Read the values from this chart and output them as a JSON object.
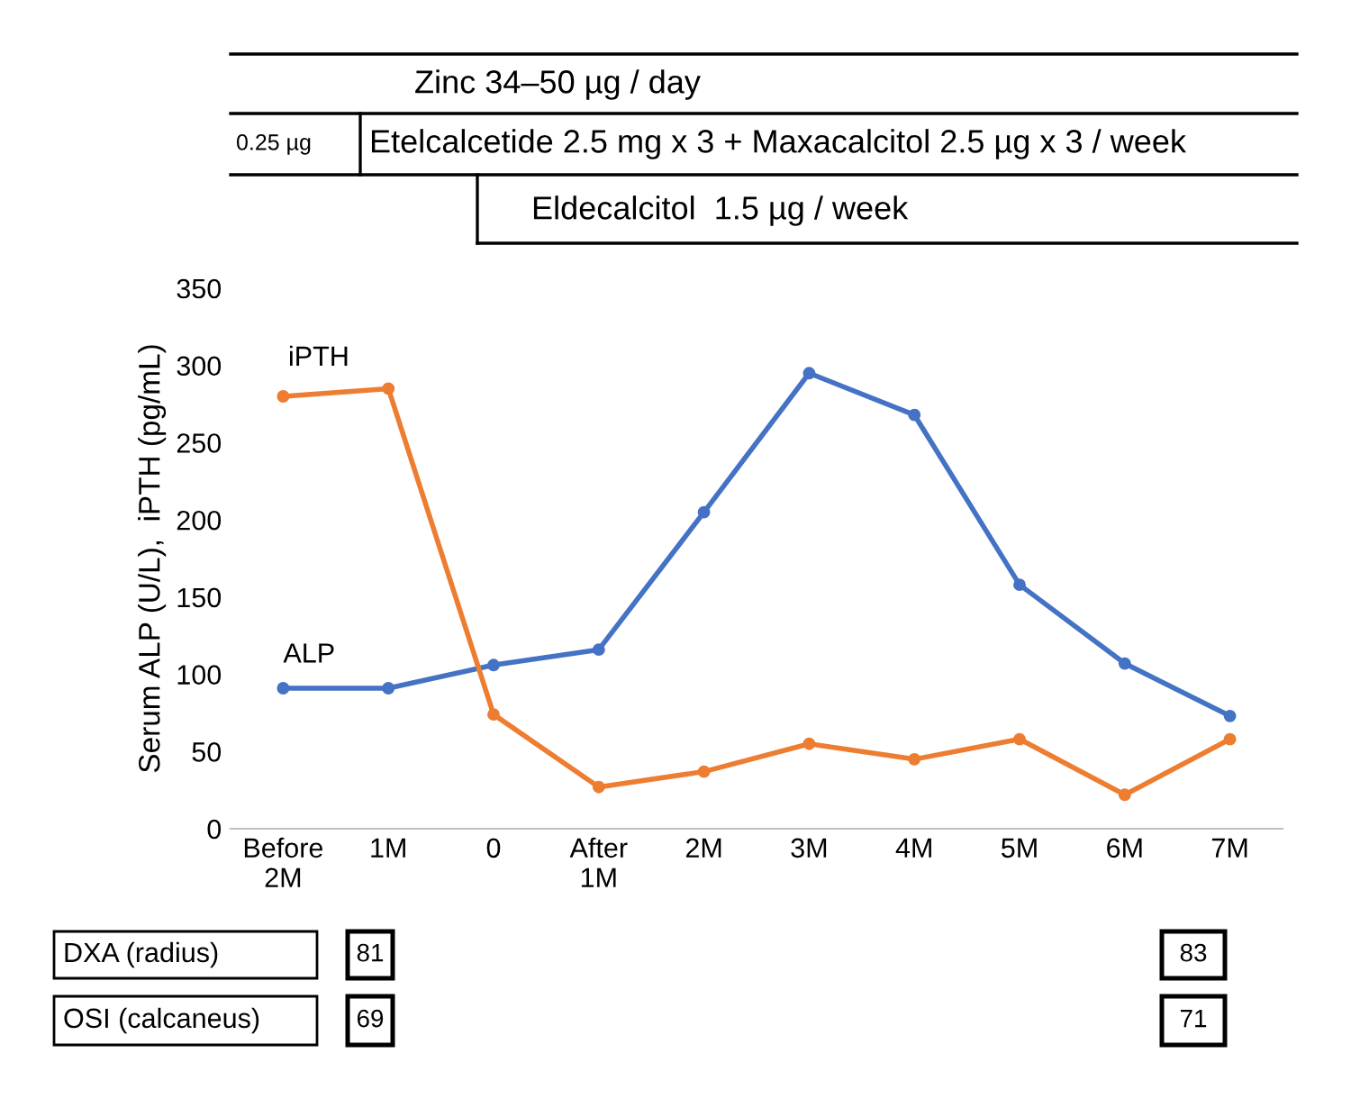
{
  "chart_data": {
    "type": "line",
    "ylabel": "Serum ALP (U/L),  iPTH (pg/mL)",
    "categories": [
      "Before\n2M",
      "1M",
      "0",
      "After\n1M",
      "2M",
      "3M",
      "4M",
      "5M",
      "6M",
      "7M"
    ],
    "series": [
      {
        "name": "ALP",
        "color": "#4472c4",
        "values": [
          91,
          91,
          106,
          116,
          205,
          295,
          268,
          158,
          107,
          73
        ]
      },
      {
        "name": "iPTH",
        "color": "#ed7d31",
        "values": [
          280,
          285,
          74,
          27,
          37,
          55,
          45,
          58,
          22,
          58
        ]
      }
    ],
    "ylim": [
      0,
      350
    ],
    "yticks": [
      0,
      50,
      100,
      150,
      200,
      250,
      300,
      350
    ],
    "grid": false,
    "legend": false,
    "marker": "circle",
    "line_style": "solid",
    "annotations": [
      "Zinc 34–50 µg / day",
      "0.25 µg",
      "Etelcalcetide 2.5 mg x 3 + Maxacalcitol 2.5 µg x 3 / week",
      "Eldecalcitol  1.5 µg / week",
      "DXA (radius)",
      "OSI (calcaneus)",
      "81",
      "83",
      "69",
      "71"
    ]
  }
}
